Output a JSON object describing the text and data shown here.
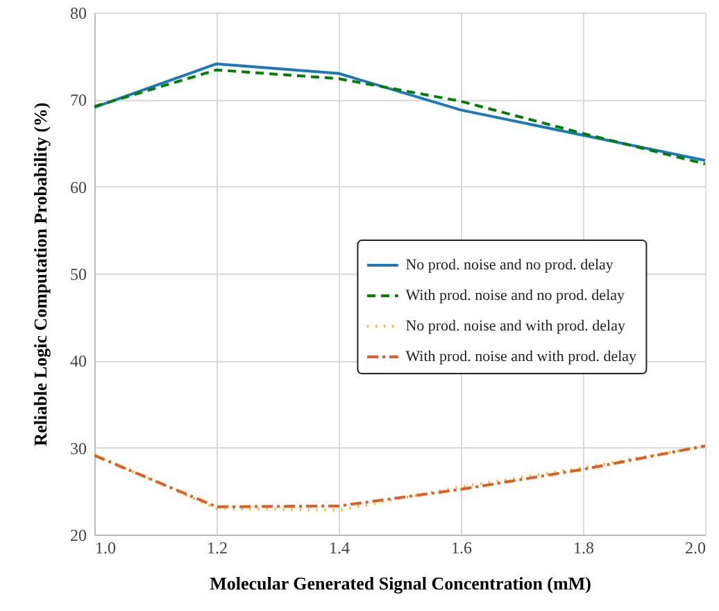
{
  "chart_data": {
    "type": "line",
    "xlabel": "Molecular Generated Signal Concentration (mM)",
    "ylabel": "Reliable Logic Computation Probability (%)",
    "x": [
      1.0,
      1.2,
      1.4,
      1.6,
      1.8,
      2.0
    ],
    "xlim": [
      1.0,
      2.0
    ],
    "xticks": [
      {
        "value": 1.0,
        "label": "1.0"
      },
      {
        "value": 1.2,
        "label": "1.2"
      },
      {
        "value": 1.4,
        "label": "1.4"
      },
      {
        "value": 1.6,
        "label": "1.6"
      },
      {
        "value": 1.8,
        "label": "1.8"
      },
      {
        "value": 2.0,
        "label": "2.0"
      }
    ],
    "ylim": [
      20,
      80
    ],
    "yticks": [
      20,
      30,
      40,
      50,
      60,
      70,
      80
    ],
    "grid": true,
    "legend": "right",
    "series": [
      {
        "name": "No prod. noise and no prod. delay",
        "color": "#1a78c2",
        "line_style": "solid",
        "values": [
          69.1,
          74.1,
          73.0,
          68.8,
          65.9,
          63.0
        ]
      },
      {
        "name": "With prod. noise and no prod. delay",
        "color": "#008000",
        "line_style": "dashed",
        "values": [
          69.2,
          73.4,
          72.4,
          69.8,
          66.1,
          62.6
        ]
      },
      {
        "name": "No prod. noise and with prod. delay",
        "color": "#ffb000",
        "line_style": "dotted",
        "values": [
          29.2,
          23.0,
          22.8,
          25.5,
          27.7,
          30.2
        ]
      },
      {
        "name": "With prod. noise and with prod. delay",
        "color": "#e85a1e",
        "line_style": "dashdot",
        "values": [
          29.1,
          23.2,
          23.3,
          25.2,
          27.5,
          30.2
        ]
      }
    ]
  }
}
